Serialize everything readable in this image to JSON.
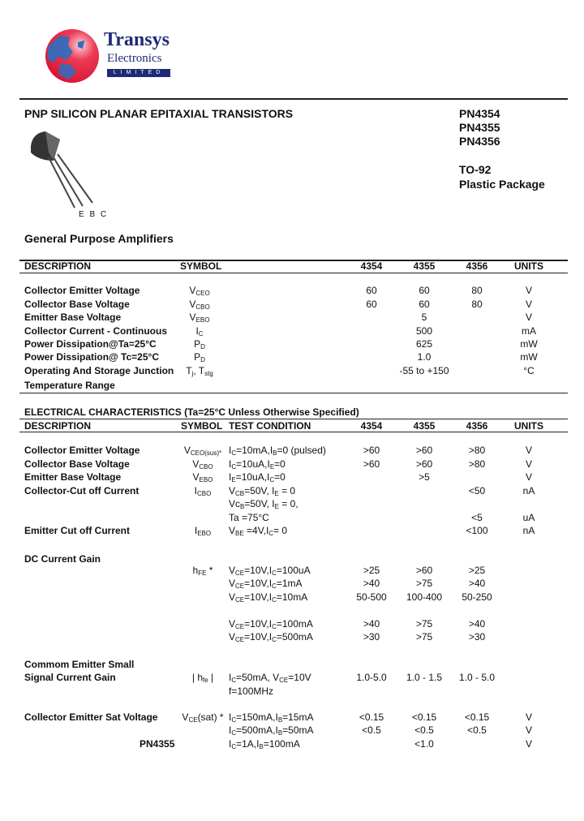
{
  "logo": {
    "name": "Transys",
    "sub": "Electronics",
    "tag": "LIMITED",
    "colors": {
      "globe": "#e8203a",
      "land": "#2a6fc0",
      "text": "#1e2a78"
    }
  },
  "header": {
    "title": "PNP SILICON PLANAR EPITAXIAL TRANSISTORS",
    "parts": [
      "PN4354",
      "PN4355",
      "PN4356"
    ],
    "package": "TO-92",
    "package_desc": "Plastic Package",
    "pin_labels": "E B C",
    "subtitle": "General Purpose Amplifiers"
  },
  "ratings": {
    "headers": {
      "description": "DESCRIPTION",
      "symbol": "SYMBOL",
      "c1": "4354",
      "c2": "4355",
      "c3": "4356",
      "units": "UNITS"
    },
    "rows": [
      {
        "d": "Collector Emitter Voltage",
        "s": "V_{CEO}",
        "c1": "60",
        "c2": "60",
        "c3": "80",
        "u": "V"
      },
      {
        "d": "Collector Base Voltage",
        "s": "V_{CBO}",
        "c1": "60",
        "c2": "60",
        "c3": "80",
        "u": "V"
      },
      {
        "d": "Emitter Base Voltage",
        "s": "V_{EBO}",
        "all": "5",
        "u": "V"
      },
      {
        "d": "Collector Current - Continuous",
        "s": "I_{C}",
        "all": "500",
        "u": "mA"
      },
      {
        "d": "Power Dissipation@Ta=25°C",
        "s": "P_{D}",
        "all": "625",
        "u": "mW"
      },
      {
        "d": "Power Dissipation@ Tc=25°C",
        "s": "P_{D}",
        "all": "1.0",
        "u": "mW"
      },
      {
        "d": "Operating And Storage Junction",
        "s": "T_{j}, T_{stg}",
        "all": "-55 to +150",
        "u": "°C"
      },
      {
        "d": "Temperature Range"
      }
    ]
  },
  "electrical": {
    "title": "ELECTRICAL CHARACTERISTICS (Ta=25°C Unless Otherwise Specified)",
    "headers": {
      "description": "DESCRIPTION",
      "symbol": "SYMBOL",
      "test": "TEST CONDITION",
      "c1": "4354",
      "c2": "4355",
      "c3": "4356",
      "units": "UNITS"
    },
    "rows": [
      {
        "d": "Collector Emitter Voltage",
        "s": "V_{CEO(sus)*}",
        "t": "I_{C}=10mA,I_{B}=0 (pulsed)",
        "c1": ">60",
        "c2": ">60",
        "c3": ">80",
        "u": "V"
      },
      {
        "d": "Collector Base Voltage",
        "s": "V_{CBO}",
        "t": "I_{C}=10uA,I_{E}=0",
        "c1": ">60",
        "c2": ">60",
        "c3": ">80",
        "u": "V"
      },
      {
        "d": "Emitter Base Voltage",
        "s": "V_{EBO}",
        "t": "I_{E}=10uA,I_{C}=0",
        "c2": ">5",
        "u": "V"
      },
      {
        "d": "Collector-Cut off Current",
        "s": "I_{CBO}",
        "t": "V_{CB}=50V, I_{E} = 0",
        "c3": "<50",
        "u": "nA"
      },
      {
        "t": "Vc_{B}=50V, I_{E} = 0,"
      },
      {
        "t": "Ta =75°C",
        "c3": "<5",
        "u": "uA"
      },
      {
        "d": "Emitter Cut off Current",
        "s": "I_{EBO}",
        "t": "V_{BE} =4V,I_{C}= 0",
        "c3": "<100",
        "u": "nA"
      },
      {
        "d": "DC Current Gain"
      },
      {
        "s": "h_{FE} *",
        "t": "V_{CE}=10V,I_{C}=100uA",
        "c1": ">25",
        "c2": ">60",
        "c3": ">25"
      },
      {
        "t": "V_{CE}=10V,I_{C}=1mA",
        "c1": ">40",
        "c2": ">75",
        "c3": ">40"
      },
      {
        "t": "V_{CE}=10V,I_{C}=10mA",
        "c1": "50-500",
        "c2": "100-400",
        "c3": "50-250"
      },
      {
        "t": "V_{CE}=10V,I_{C}=100mA",
        "c1": ">40",
        "c2": ">75",
        "c3": ">40"
      },
      {
        "t": "V_{CE}=10V,I_{C}=500mA",
        "c1": ">30",
        "c2": ">75",
        "c3": ">30"
      },
      {
        "d": "Commom Emitter Small"
      },
      {
        "d": "Signal Current Gain",
        "s": "| h_{fe} |",
        "t": "I_{C}=50mA, V_{CE}=10V",
        "c1": "1.0-5.0",
        "c2": "1.0 - 1.5",
        "c3": "1.0 - 5.0"
      },
      {
        "t": "f=100MHz"
      },
      {
        "d": "Collector Emitter Sat Voltage",
        "s": "V_{CE}(sat) *",
        "t": "I_{C}=150mA,I_{B}=15mA",
        "c1": "<0.15",
        "c2": "<0.15",
        "c3": "<0.15",
        "u": "V"
      },
      {
        "t": "I_{C}=500mA,I_{B}=50mA",
        "c1": "<0.5",
        "c2": "<0.5",
        "c3": "<0.5",
        "u": "V"
      },
      {
        "p": "PN4355",
        "t": "I_{C}=1A,I_{B}=100mA",
        "c2": "<1.0",
        "u": "V"
      }
    ]
  }
}
